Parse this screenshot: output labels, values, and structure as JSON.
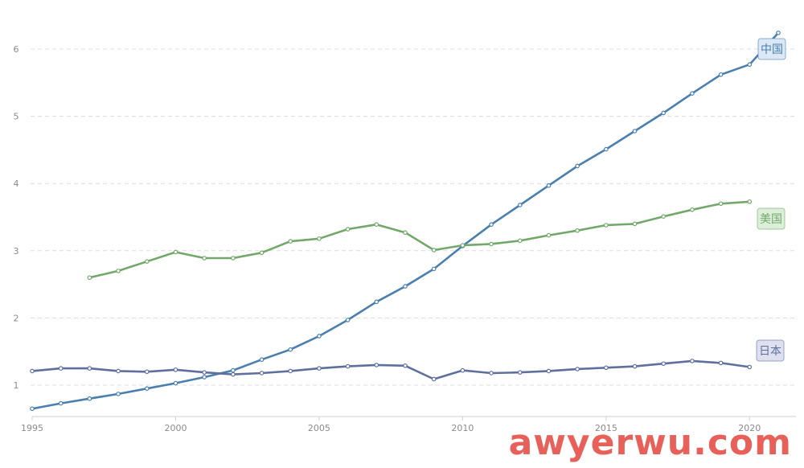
{
  "chart_data": {
    "type": "line",
    "title": "",
    "xlabel": "",
    "ylabel": "",
    "xlim": [
      1995,
      2021
    ],
    "ylim": [
      0.5,
      6.5
    ],
    "x_ticks": [
      "1995",
      "2000",
      "2005",
      "2010",
      "2015",
      "2020"
    ],
    "y_ticks": [
      "1",
      "2",
      "3",
      "4",
      "5",
      "6"
    ],
    "grid": "horizontal dashed",
    "series": [
      {
        "name": "中国",
        "color": "#4a7fae",
        "tag_bg": "#dce8f5",
        "x": [
          1995,
          1996,
          1997,
          1998,
          1999,
          2000,
          2001,
          2002,
          2003,
          2004,
          2005,
          2006,
          2007,
          2008,
          2009,
          2010,
          2011,
          2012,
          2013,
          2014,
          2015,
          2016,
          2017,
          2018,
          2019,
          2020,
          2021
        ],
        "values": [
          0.65,
          0.73,
          0.8,
          0.87,
          0.95,
          1.03,
          1.12,
          1.22,
          1.38,
          1.53,
          1.73,
          1.97,
          2.24,
          2.47,
          2.73,
          3.07,
          3.39,
          3.68,
          3.97,
          4.26,
          4.51,
          4.78,
          5.05,
          5.34,
          5.62,
          5.77,
          6.24
        ]
      },
      {
        "name": "美国",
        "color": "#72a86a",
        "tag_bg": "#dcefd8",
        "x": [
          1997,
          1998,
          1999,
          2000,
          2001,
          2002,
          2003,
          2004,
          2005,
          2006,
          2007,
          2008,
          2009,
          2010,
          2011,
          2012,
          2013,
          2014,
          2015,
          2016,
          2017,
          2018,
          2019,
          2020
        ],
        "values": [
          2.6,
          2.7,
          2.84,
          2.98,
          2.89,
          2.89,
          2.97,
          3.14,
          3.18,
          3.32,
          3.39,
          3.27,
          3.01,
          3.08,
          3.1,
          3.15,
          3.23,
          3.3,
          3.38,
          3.4,
          3.51,
          3.61,
          3.7,
          3.73
        ]
      },
      {
        "name": "日本",
        "color": "#5f6f9e",
        "tag_bg": "#dfe0ef",
        "x": [
          1995,
          1996,
          1997,
          1998,
          1999,
          2000,
          2001,
          2002,
          2003,
          2004,
          2005,
          2006,
          2007,
          2008,
          2009,
          2010,
          2011,
          2012,
          2013,
          2014,
          2015,
          2016,
          2017,
          2018,
          2019,
          2020
        ],
        "values": [
          1.21,
          1.25,
          1.25,
          1.21,
          1.2,
          1.23,
          1.19,
          1.16,
          1.18,
          1.21,
          1.25,
          1.28,
          1.3,
          1.29,
          1.09,
          1.22,
          1.18,
          1.19,
          1.21,
          1.24,
          1.26,
          1.28,
          1.32,
          1.36,
          1.33,
          1.27
        ]
      }
    ]
  },
  "watermark": {
    "text": "awyerwu.com",
    "color": "#e8605a"
  }
}
